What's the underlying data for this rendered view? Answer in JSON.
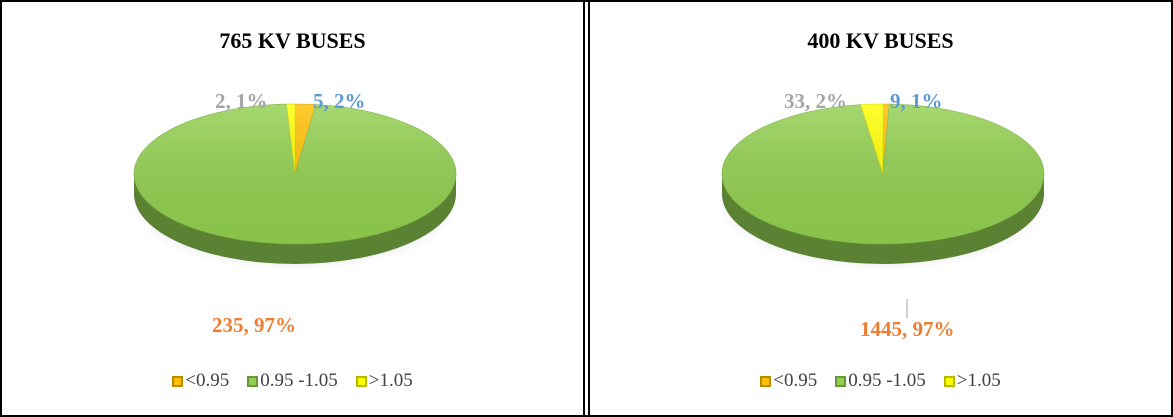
{
  "chart_data": [
    {
      "type": "pie",
      "title": "765 KV BUSES",
      "slices": [
        {
          "name": "<0.95",
          "value": 5,
          "label": "5, 2%",
          "color": "#ffc000",
          "label_color": "#5b9bd5"
        },
        {
          "name": "0.95 -1.05",
          "value": 235,
          "label": "235, 97%",
          "color": "#92d050",
          "label_color": "#ed7d31"
        },
        {
          "name": ">1.05",
          "value": 2,
          "label": "2, 1%",
          "color": "#ffff00",
          "label_color": "#a5a5a5"
        }
      ],
      "legend": {
        "position": "bottom",
        "items": [
          {
            "name": "<0.95",
            "color": "#ffc000"
          },
          {
            "name": "0.95 -1.05",
            "color": "#92d050"
          },
          {
            "name": ">1.05",
            "color": "#ffff00"
          }
        ]
      }
    },
    {
      "type": "pie",
      "title": "400 KV BUSES",
      "slices": [
        {
          "name": "<0.95",
          "value": 9,
          "label": "9, 1%",
          "color": "#ffc000",
          "label_color": "#5b9bd5"
        },
        {
          "name": "0.95 -1.05",
          "value": 1445,
          "label": "1445, 97%",
          "color": "#92d050",
          "label_color": "#ed7d31"
        },
        {
          "name": ">1.05",
          "value": 33,
          "label": "33, 2%",
          "color": "#ffff00",
          "label_color": "#a5a5a5"
        }
      ],
      "legend": {
        "position": "bottom",
        "items": [
          {
            "name": "<0.95",
            "color": "#ffc000"
          },
          {
            "name": "0.95 -1.05",
            "color": "#92d050"
          },
          {
            "name": ">1.05",
            "color": "#ffff00"
          }
        ]
      }
    }
  ]
}
